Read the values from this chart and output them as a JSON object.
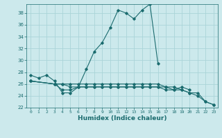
{
  "title": "",
  "xlabel": "Humidex (Indice chaleur)",
  "bg_color": "#cce9ec",
  "grid_color": "#aad4d8",
  "line_color": "#1a6b6e",
  "xlim": [
    -0.5,
    23.5
  ],
  "ylim": [
    22,
    39.5
  ],
  "yticks": [
    22,
    24,
    26,
    28,
    30,
    32,
    34,
    36,
    38
  ],
  "xticks": [
    0,
    1,
    2,
    3,
    4,
    5,
    6,
    7,
    8,
    9,
    10,
    11,
    12,
    13,
    14,
    15,
    16,
    17,
    18,
    19,
    20,
    21,
    22,
    23
  ],
  "series1_x": [
    0,
    1,
    2,
    3,
    4,
    5,
    6,
    7,
    8,
    9,
    10,
    11,
    12,
    13,
    14,
    15,
    16
  ],
  "series1_y": [
    27.5,
    27.0,
    27.5,
    26.5,
    24.5,
    24.5,
    25.5,
    28.5,
    31.5,
    33.0,
    35.5,
    38.5,
    38.0,
    37.0,
    38.5,
    39.5,
    29.5
  ],
  "series2_x": [
    0,
    3,
    4,
    5,
    6,
    7,
    8,
    9,
    10,
    11,
    12,
    13,
    14,
    15,
    16,
    17,
    18,
    19,
    20
  ],
  "series2_y": [
    26.5,
    26.0,
    26.0,
    25.5,
    25.5,
    25.5,
    25.5,
    25.5,
    25.5,
    25.5,
    25.5,
    25.5,
    25.5,
    25.5,
    25.5,
    25.5,
    25.0,
    25.5,
    25.0
  ],
  "series3_x": [
    0,
    3,
    4,
    5,
    6,
    7,
    8,
    9,
    10,
    11,
    12,
    13,
    14,
    15,
    16,
    17,
    18,
    19,
    20,
    21,
    22,
    23
  ],
  "series3_y": [
    26.5,
    26.0,
    25.0,
    25.0,
    25.5,
    25.5,
    25.5,
    25.5,
    25.5,
    25.5,
    25.5,
    25.5,
    25.5,
    25.5,
    25.5,
    25.0,
    25.0,
    25.0,
    24.5,
    24.0,
    23.0,
    22.5
  ],
  "series4_x": [
    0,
    3,
    4,
    5,
    6,
    7,
    8,
    9,
    10,
    11,
    12,
    13,
    14,
    15,
    16,
    17,
    18,
    19,
    20,
    21,
    22,
    23
  ],
  "series4_y": [
    26.5,
    26.0,
    26.0,
    26.0,
    26.0,
    26.0,
    26.0,
    26.0,
    26.0,
    26.0,
    26.0,
    26.0,
    26.0,
    26.0,
    26.0,
    25.5,
    25.5,
    25.0,
    24.5,
    24.5,
    23.0,
    22.5
  ]
}
